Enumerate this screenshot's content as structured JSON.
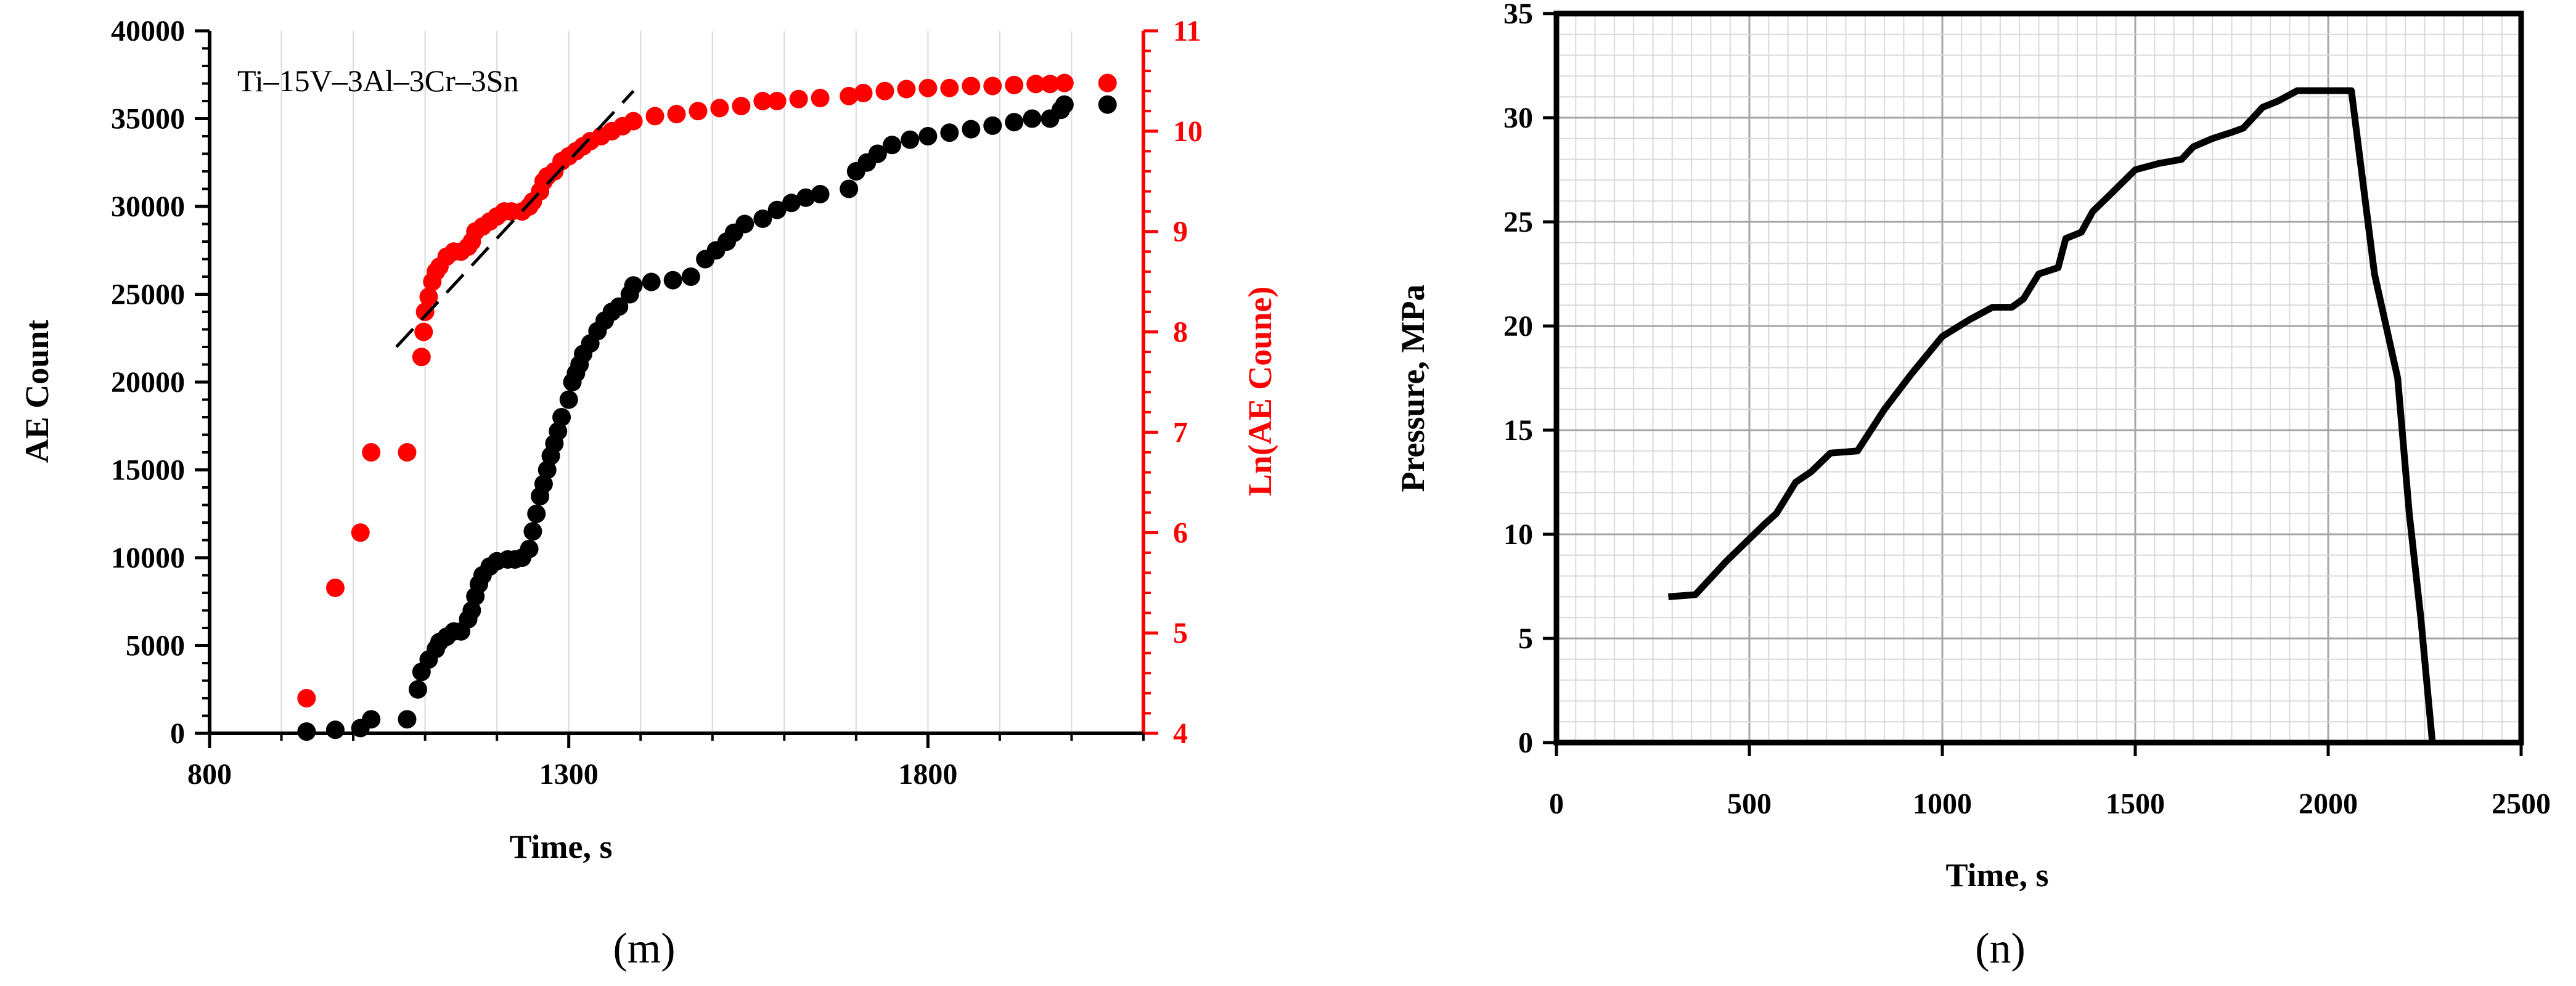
{
  "colors": {
    "black": "#000000",
    "red": "#ff0000",
    "grid_light": "#d9d9d9",
    "grid_dark": "#a6a6a6"
  },
  "chart_data": [
    {
      "panel_label": "(m)",
      "type": "scatter",
      "annotation": "Ti–15V–3Al–3Cr–3Sn",
      "xlabel": "Time, s",
      "ylabel": "AE Count",
      "y2label": "Ln(AE Coune)",
      "xlim": [
        800,
        2100
      ],
      "ylim": [
        0,
        40000
      ],
      "y2lim": [
        4,
        11
      ],
      "xticks": [
        "800",
        "1300",
        "1800"
      ],
      "xtick_values": [
        800,
        1300,
        1800
      ],
      "yticks": [
        "0",
        "5000",
        "10000",
        "15000",
        "20000",
        "25000",
        "30000",
        "35000",
        "40000"
      ],
      "ytick_values": [
        0,
        5000,
        10000,
        15000,
        20000,
        25000,
        30000,
        35000,
        40000
      ],
      "y2ticks": [
        "4",
        "5",
        "6",
        "7",
        "8",
        "9",
        "10",
        "11"
      ],
      "y2tick_values": [
        4,
        5,
        6,
        7,
        8,
        9,
        10,
        11
      ],
      "grid": "vertical",
      "series": [
        {
          "axis": "left",
          "color": "#000000",
          "points": [
            [
              935,
              100
            ],
            [
              975,
              200
            ],
            [
              1010,
              300
            ],
            [
              1025,
              800
            ],
            [
              1075,
              800
            ],
            [
              1090,
              2500
            ],
            [
              1095,
              3500
            ],
            [
              1105,
              4200
            ],
            [
              1115,
              4800
            ],
            [
              1120,
              5200
            ],
            [
              1130,
              5500
            ],
            [
              1140,
              5800
            ],
            [
              1150,
              5800
            ],
            [
              1160,
              6500
            ],
            [
              1165,
              7000
            ],
            [
              1170,
              7800
            ],
            [
              1175,
              8500
            ],
            [
              1180,
              9000
            ],
            [
              1190,
              9500
            ],
            [
              1200,
              9800
            ],
            [
              1215,
              9900
            ],
            [
              1225,
              9900
            ],
            [
              1235,
              10000
            ],
            [
              1245,
              10500
            ],
            [
              1250,
              11500
            ],
            [
              1255,
              12500
            ],
            [
              1260,
              13500
            ],
            [
              1265,
              14200
            ],
            [
              1270,
              15000
            ],
            [
              1275,
              15800
            ],
            [
              1280,
              16500
            ],
            [
              1285,
              17200
            ],
            [
              1290,
              18000
            ],
            [
              1300,
              19000
            ],
            [
              1305,
              20000
            ],
            [
              1310,
              20500
            ],
            [
              1315,
              21000
            ],
            [
              1320,
              21600
            ],
            [
              1330,
              22200
            ],
            [
              1340,
              22900
            ],
            [
              1350,
              23500
            ],
            [
              1360,
              24000
            ],
            [
              1370,
              24300
            ],
            [
              1385,
              25000
            ],
            [
              1390,
              25500
            ],
            [
              1415,
              25700
            ],
            [
              1445,
              25800
            ],
            [
              1470,
              26000
            ],
            [
              1490,
              27000
            ],
            [
              1505,
              27500
            ],
            [
              1520,
              28000
            ],
            [
              1530,
              28500
            ],
            [
              1545,
              29000
            ],
            [
              1570,
              29300
            ],
            [
              1590,
              29800
            ],
            [
              1610,
              30200
            ],
            [
              1630,
              30500
            ],
            [
              1650,
              30700
            ],
            [
              1690,
              31000
            ],
            [
              1700,
              32000
            ],
            [
              1715,
              32500
            ],
            [
              1730,
              33000
            ],
            [
              1750,
              33500
            ],
            [
              1775,
              33800
            ],
            [
              1800,
              34000
            ],
            [
              1830,
              34200
            ],
            [
              1860,
              34400
            ],
            [
              1890,
              34600
            ],
            [
              1920,
              34800
            ],
            [
              1945,
              35000
            ],
            [
              1970,
              35000
            ],
            [
              1985,
              35500
            ],
            [
              1990,
              35800
            ],
            [
              2050,
              35800
            ]
          ]
        },
        {
          "axis": "right",
          "color": "#ff0000",
          "points": [
            [
              935,
              4.35
            ],
            [
              975,
              5.45
            ],
            [
              1010,
              6.0
            ],
            [
              1025,
              6.8
            ],
            [
              1075,
              6.8
            ],
            [
              1095,
              7.75
            ],
            [
              1098,
              8.0
            ],
            [
              1100,
              8.2
            ],
            [
              1105,
              8.35
            ],
            [
              1110,
              8.5
            ],
            [
              1115,
              8.6
            ],
            [
              1120,
              8.65
            ],
            [
              1130,
              8.75
            ],
            [
              1140,
              8.8
            ],
            [
              1150,
              8.8
            ],
            [
              1160,
              8.85
            ],
            [
              1165,
              8.9
            ],
            [
              1170,
              9.0
            ],
            [
              1180,
              9.05
            ],
            [
              1190,
              9.1
            ],
            [
              1200,
              9.15
            ],
            [
              1210,
              9.2
            ],
            [
              1220,
              9.2
            ],
            [
              1235,
              9.2
            ],
            [
              1245,
              9.25
            ],
            [
              1250,
              9.3
            ],
            [
              1260,
              9.4
            ],
            [
              1265,
              9.5
            ],
            [
              1270,
              9.55
            ],
            [
              1280,
              9.6
            ],
            [
              1290,
              9.7
            ],
            [
              1300,
              9.75
            ],
            [
              1310,
              9.8
            ],
            [
              1320,
              9.85
            ],
            [
              1330,
              9.9
            ],
            [
              1345,
              9.95
            ],
            [
              1360,
              10.0
            ],
            [
              1375,
              10.05
            ],
            [
              1390,
              10.1
            ],
            [
              1420,
              10.15
            ],
            [
              1450,
              10.17
            ],
            [
              1480,
              10.2
            ],
            [
              1510,
              10.23
            ],
            [
              1540,
              10.25
            ],
            [
              1570,
              10.3
            ],
            [
              1590,
              10.3
            ],
            [
              1620,
              10.32
            ],
            [
              1650,
              10.33
            ],
            [
              1690,
              10.35
            ],
            [
              1710,
              10.38
            ],
            [
              1740,
              10.4
            ],
            [
              1770,
              10.42
            ],
            [
              1800,
              10.43
            ],
            [
              1830,
              10.43
            ],
            [
              1860,
              10.45
            ],
            [
              1890,
              10.45
            ],
            [
              1920,
              10.46
            ],
            [
              1950,
              10.47
            ],
            [
              1970,
              10.47
            ],
            [
              1990,
              10.48
            ],
            [
              2050,
              10.48
            ]
          ]
        }
      ],
      "trend_line": {
        "axis": "right",
        "style": "dashed",
        "color": "#000000",
        "from": [
          1060,
          7.85
        ],
        "to": [
          1390,
          10.4
        ]
      }
    },
    {
      "panel_label": "(n)",
      "type": "line",
      "xlabel": "Time, s",
      "ylabel": "Pressure, MPa",
      "xlim": [
        0,
        2500
      ],
      "ylim": [
        0,
        35
      ],
      "xticks": [
        "0",
        "500",
        "1000",
        "1500",
        "2000",
        "2500"
      ],
      "xtick_values": [
        0,
        500,
        1000,
        1500,
        2000,
        2500
      ],
      "yticks": [
        "0",
        "5",
        "10",
        "15",
        "20",
        "25",
        "30",
        "35"
      ],
      "ytick_values": [
        0,
        5,
        10,
        15,
        20,
        25,
        30,
        35
      ],
      "grid": "major and minor",
      "series": [
        {
          "color": "#000000",
          "points": [
            [
              290,
              7.0
            ],
            [
              360,
              7.1
            ],
            [
              440,
              8.7
            ],
            [
              540,
              10.5
            ],
            [
              570,
              11.0
            ],
            [
              620,
              12.5
            ],
            [
              660,
              13.0
            ],
            [
              710,
              13.9
            ],
            [
              780,
              14.0
            ],
            [
              850,
              16.0
            ],
            [
              920,
              17.7
            ],
            [
              1000,
              19.5
            ],
            [
              1070,
              20.3
            ],
            [
              1130,
              20.9
            ],
            [
              1180,
              20.9
            ],
            [
              1210,
              21.3
            ],
            [
              1250,
              22.5
            ],
            [
              1300,
              22.8
            ],
            [
              1320,
              24.2
            ],
            [
              1360,
              24.5
            ],
            [
              1390,
              25.5
            ],
            [
              1440,
              26.4
            ],
            [
              1500,
              27.5
            ],
            [
              1560,
              27.8
            ],
            [
              1620,
              28.0
            ],
            [
              1650,
              28.6
            ],
            [
              1700,
              29.0
            ],
            [
              1750,
              29.3
            ],
            [
              1780,
              29.5
            ],
            [
              1800,
              29.9
            ],
            [
              1830,
              30.5
            ],
            [
              1870,
              30.8
            ],
            [
              1900,
              31.1
            ],
            [
              1920,
              31.3
            ],
            [
              2000,
              31.3
            ],
            [
              2060,
              31.3
            ],
            [
              2120,
              22.5
            ],
            [
              2180,
              17.5
            ],
            [
              2210,
              11.0
            ],
            [
              2240,
              6.0
            ],
            [
              2270,
              0.0
            ]
          ]
        }
      ]
    }
  ]
}
